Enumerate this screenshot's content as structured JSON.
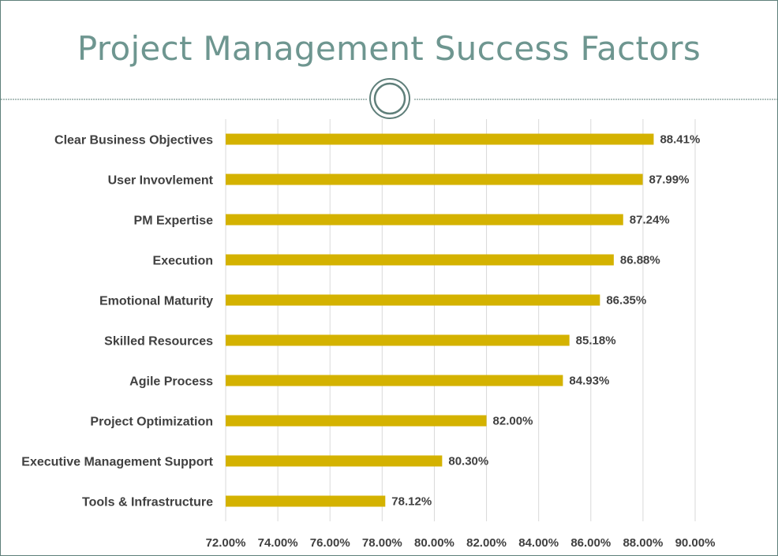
{
  "title": "Project Management Success Factors",
  "colors": {
    "bar": "#d4b200",
    "title": "#6e9690",
    "divider": "#5f7f7a",
    "grid": "#d9d9d9",
    "label": "#404040"
  },
  "chart_data": {
    "type": "bar",
    "orientation": "horizontal",
    "title": "",
    "xlabel": "",
    "ylabel": "",
    "xlim": [
      72,
      90
    ],
    "x_ticks": [
      "72.00%",
      "74.00%",
      "76.00%",
      "78.00%",
      "80.00%",
      "82.00%",
      "84.00%",
      "86.00%",
      "88.00%",
      "90.00%"
    ],
    "grid": "vertical",
    "categories": [
      "Clear Business Objectives",
      "User Invovlement",
      "PM Expertise",
      "Execution",
      "Emotional Maturity",
      "Skilled Resources",
      "Agile Process",
      "Project Optimization",
      "Executive Management Support",
      "Tools & Infrastructure"
    ],
    "values": [
      88.41,
      87.99,
      87.24,
      86.88,
      86.35,
      85.18,
      84.93,
      82.0,
      80.3,
      78.12
    ],
    "data_labels": [
      "88.41%",
      "87.99%",
      "87.24%",
      "86.88%",
      "86.35%",
      "85.18%",
      "84.93%",
      "82.00%",
      "80.30%",
      "78.12%"
    ]
  }
}
